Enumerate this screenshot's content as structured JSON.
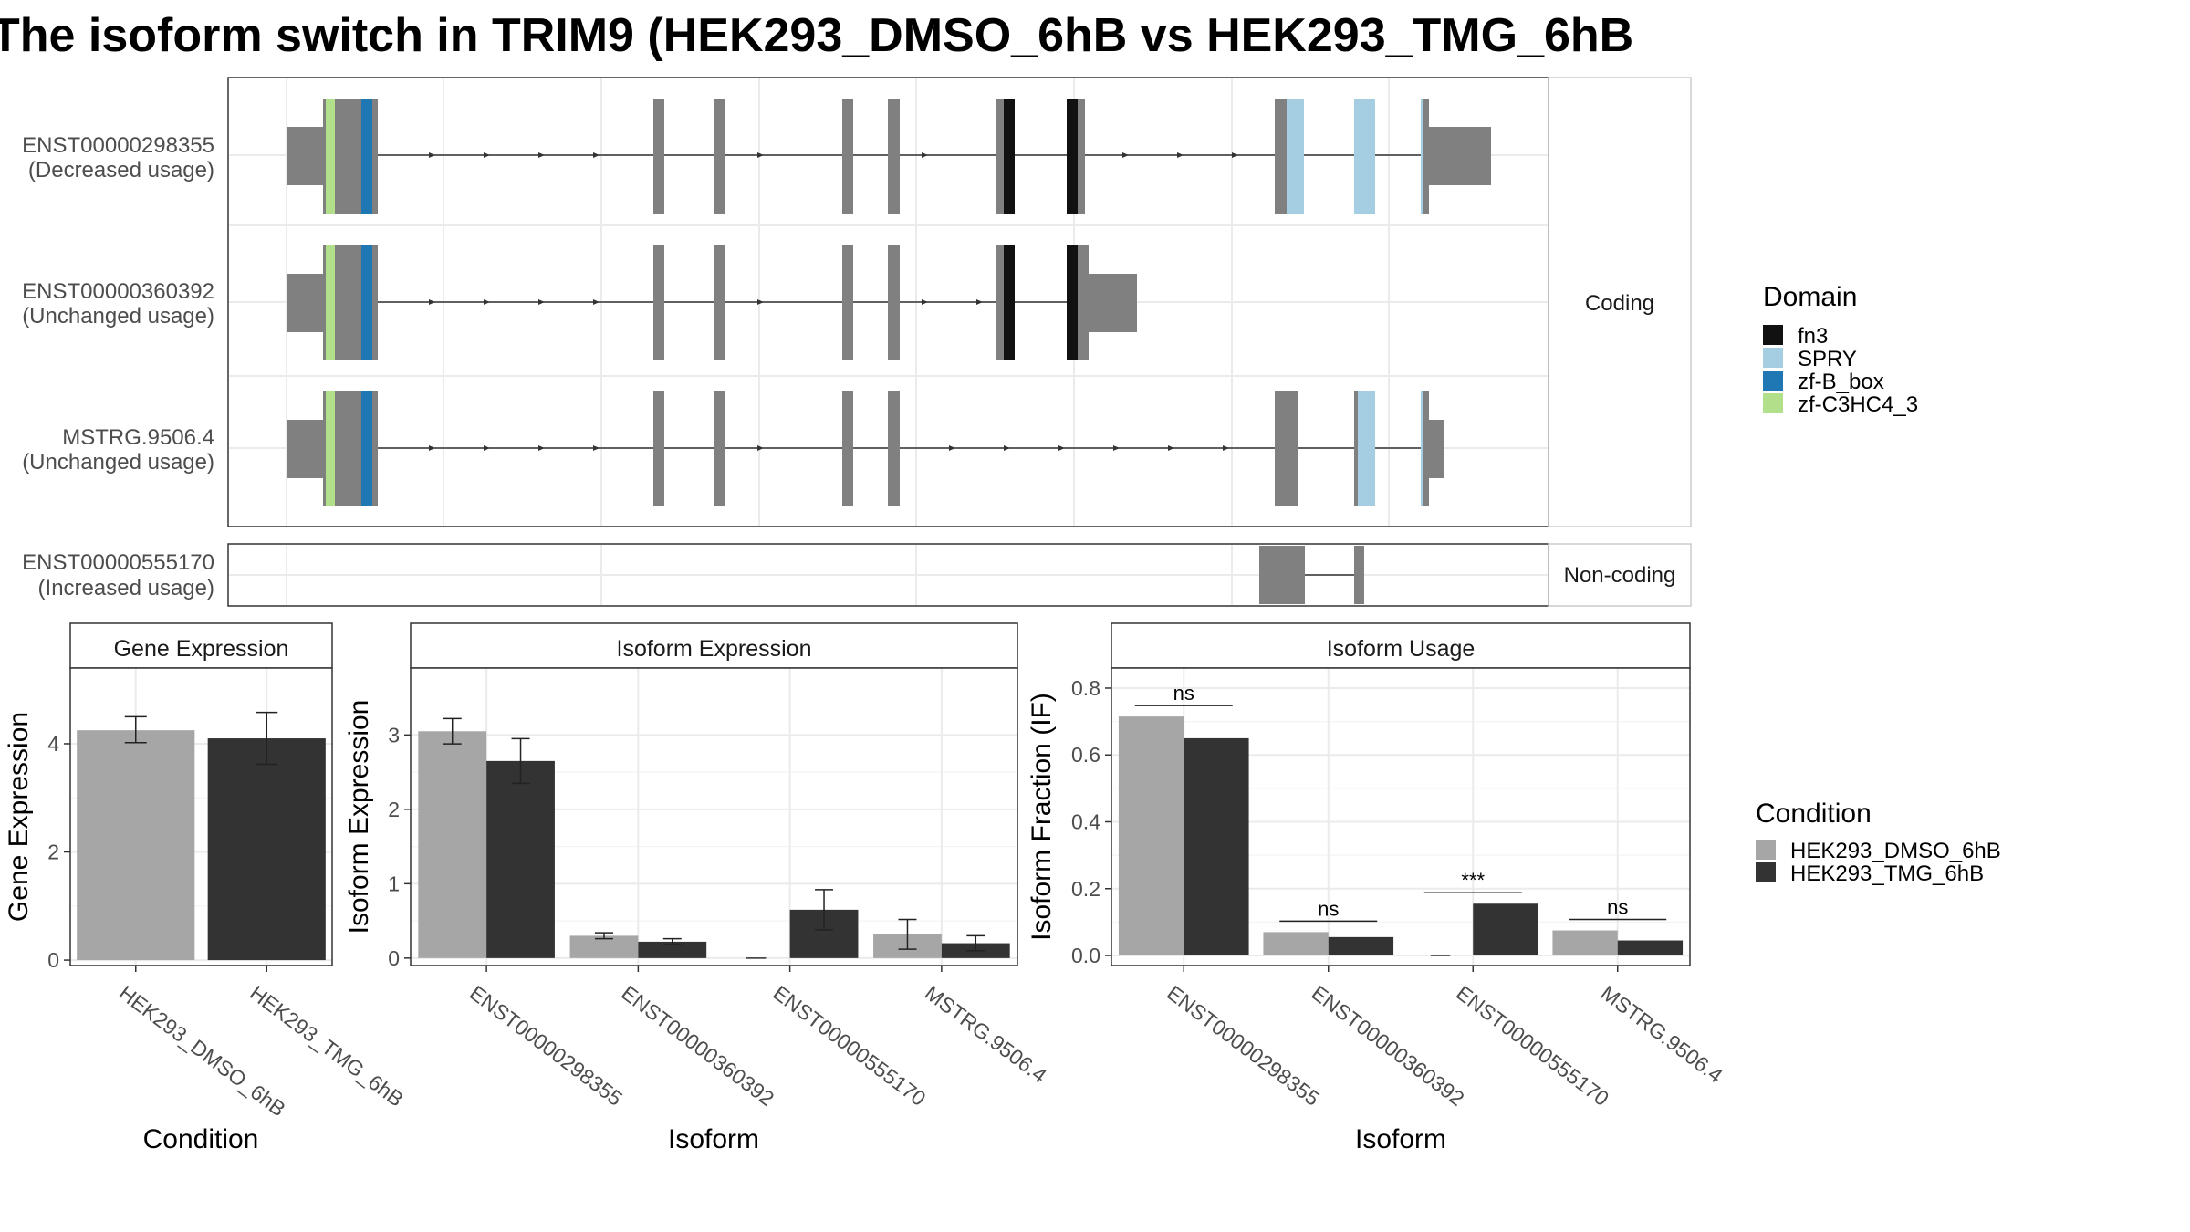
{
  "title": "The isoform switch in TRIM9 (HEK293_DMSO_6hB vs HEK293_TMG_6hB",
  "colors": {
    "fn3": "#111111",
    "SPRY": "#A6CEE3",
    "zf-B_box": "#1F78B4",
    "zf-C3HC4_3": "#B2DF8A",
    "exon": "#808080",
    "cond1": "#A6A6A6",
    "cond2": "#333333"
  },
  "isoform_structure": {
    "facets": [
      "Coding",
      "Non-coding"
    ],
    "isoforms": [
      {
        "id": "ENST00000298355",
        "usage": "(Decreased usage)",
        "facet": "Coding"
      },
      {
        "id": "ENST00000360392",
        "usage": "(Unchanged usage)",
        "facet": "Coding"
      },
      {
        "id": "MSTRG.9506.4",
        "usage": "(Unchanged usage)",
        "facet": "Coding"
      },
      {
        "id": "ENST00000555170",
        "usage": "(Increased usage)",
        "facet": "Non-coding"
      }
    ]
  },
  "legends": {
    "domain_title": "Domain",
    "domains": [
      "fn3",
      "SPRY",
      "zf-B_box",
      "zf-C3HC4_3"
    ],
    "condition_title": "Condition",
    "conditions": [
      "HEK293_DMSO_6hB",
      "HEK293_TMG_6hB"
    ]
  },
  "chart_data": [
    {
      "type": "bar",
      "title": "Gene Expression",
      "xlabel": "Condition",
      "ylabel": "Gene Expression",
      "categories": [
        "HEK293_DMSO_6hB",
        "HEK293_TMG_6hB"
      ],
      "values": [
        4.25,
        4.1
      ],
      "errors_low": [
        4.02,
        3.62
      ],
      "errors_high": [
        4.5,
        4.58
      ],
      "yticks": [
        0,
        2,
        4
      ],
      "ylim": [
        -0.1,
        5.4
      ],
      "grid": true
    },
    {
      "type": "bar",
      "title": "Isoform Expression",
      "xlabel": "Isoform",
      "ylabel": "Isoform Expression",
      "categories": [
        "ENST00000298355",
        "ENST00000360392",
        "ENST00000555170",
        "MSTRG.9506.4"
      ],
      "yticks": [
        0,
        1,
        2,
        3
      ],
      "ylim": [
        -0.1,
        3.9
      ],
      "grid": true,
      "series": [
        {
          "name": "HEK293_DMSO_6hB",
          "values": [
            3.05,
            0.3,
            0.0,
            0.32
          ],
          "errors_low": [
            2.88,
            0.26,
            0.0,
            0.12
          ],
          "errors_high": [
            3.22,
            0.34,
            0.0,
            0.52
          ]
        },
        {
          "name": "HEK293_TMG_6hB",
          "values": [
            2.65,
            0.22,
            0.65,
            0.2
          ],
          "errors_low": [
            2.35,
            0.18,
            0.38,
            0.1
          ],
          "errors_high": [
            2.95,
            0.26,
            0.92,
            0.3
          ]
        }
      ]
    },
    {
      "type": "bar",
      "title": "Isoform Usage",
      "xlabel": "Isoform",
      "ylabel": "Isoform Fraction (IF)",
      "categories": [
        "ENST00000298355",
        "ENST00000360392",
        "ENST00000555170",
        "MSTRG.9506.4"
      ],
      "yticks": [
        "0.0",
        "0.2",
        "0.4",
        "0.6",
        "0.8"
      ],
      "ylim": [
        -0.03,
        0.86
      ],
      "grid": true,
      "series": [
        {
          "name": "HEK293_DMSO_6hB",
          "values": [
            0.715,
            0.07,
            0.0,
            0.075
          ]
        },
        {
          "name": "HEK293_TMG_6hB",
          "values": [
            0.65,
            0.055,
            0.155,
            0.045
          ]
        }
      ],
      "significance": [
        "ns",
        "ns",
        "***",
        "ns"
      ]
    }
  ]
}
